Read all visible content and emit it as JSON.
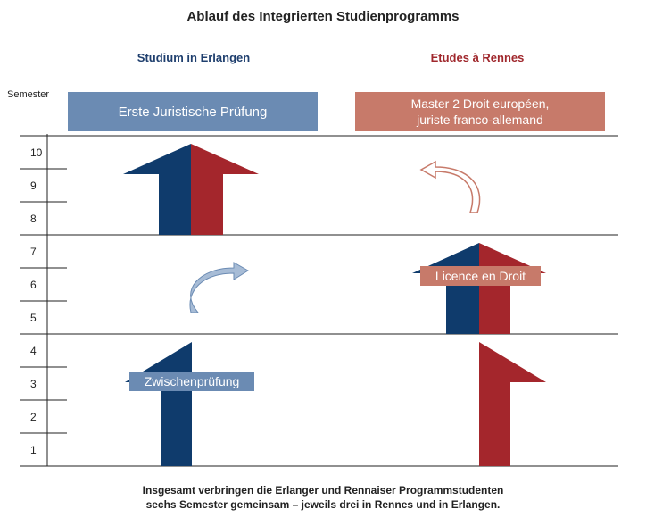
{
  "title": "Ablauf des Integrierten Studienprogramms",
  "columns": {
    "left": "Studium in Erlangen",
    "right": "Etudes à Rennes"
  },
  "axis_label": "Semester",
  "semesters": [
    "10",
    "9",
    "8",
    "7",
    "6",
    "5",
    "4",
    "3",
    "2",
    "1"
  ],
  "boxes": {
    "left_top": "Erste Juristische Prüfung",
    "right_top_line1": "Master 2 Droit européen,",
    "right_top_line2": "juriste franco-allemand",
    "zwischen": "Zwischenprüfung",
    "licence": "Licence en Droit"
  },
  "footer": {
    "line1": "Insgesamt verbringen die Erlanger und Rennaiser Programmstudenten",
    "line2": "sechs Semester gemeinsam – jeweils drei in Rennes und in Erlangen."
  },
  "colors": {
    "blue": "#0f3b6c",
    "red": "#a4262c",
    "light_blue": "#6b8bb3",
    "salmon": "#c77a6a"
  }
}
